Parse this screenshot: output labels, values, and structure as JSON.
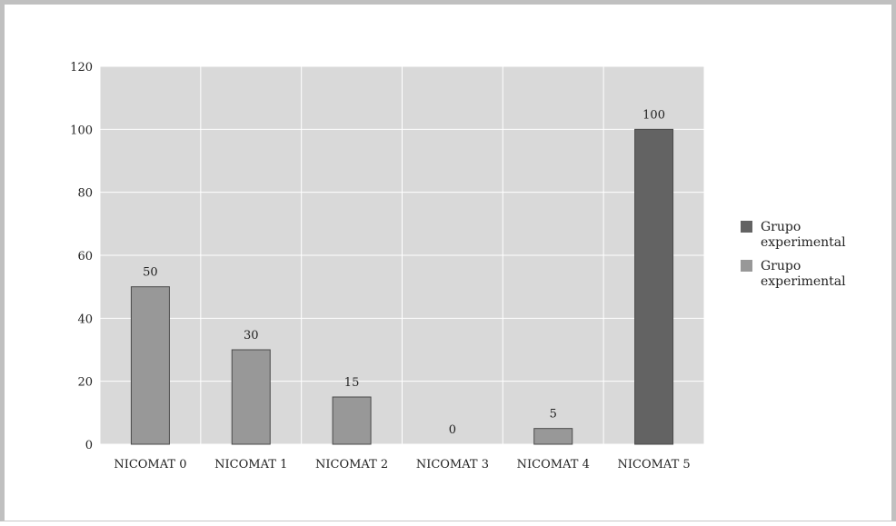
{
  "chart_data": {
    "type": "bar",
    "categories": [
      "NICOMAT 0",
      "NICOMAT 1",
      "NICOMAT 2",
      "NICOMAT 3",
      "NICOMAT 4",
      "NICOMAT 5"
    ],
    "values": [
      50,
      30,
      15,
      0,
      5,
      100
    ],
    "value_labels": [
      "50",
      "30",
      "15",
      "0",
      "5",
      "100"
    ],
    "bar_series": [
      1,
      1,
      1,
      1,
      1,
      0
    ],
    "series": [
      {
        "name": "Grupo experimental",
        "color": "#636363"
      },
      {
        "name": "Grupo experimental",
        "color": "#989898"
      }
    ],
    "ylim": [
      0,
      120
    ],
    "yticks": [
      0,
      20,
      40,
      60,
      80,
      100,
      120
    ],
    "title": "",
    "xlabel": "",
    "ylabel": "",
    "grid": true,
    "legend_position": "right",
    "colors": {
      "plot_background": "#d9d9d9",
      "gridline": "#ffffff",
      "bar_stroke": "#4a4a4a"
    }
  }
}
